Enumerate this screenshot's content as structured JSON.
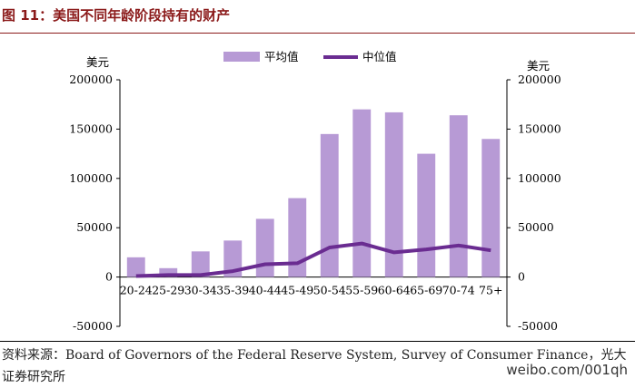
{
  "title": "图 11：美国不同年龄阶段持有的财产",
  "source": "资料来源：Board of Governors of the Federal Reserve System, Survey of Consumer Finance，光大证券研究所",
  "watermark": "weibo.com/001qh",
  "chart_data": {
    "type": "bar",
    "categories": [
      "20-24",
      "25-29",
      "30-34",
      "35-39",
      "40-44",
      "45-49",
      "50-54",
      "55-59",
      "60-64",
      "65-69",
      "70-74",
      "75+"
    ],
    "series": [
      {
        "name": "平均值",
        "kind": "bar",
        "axis": "left",
        "color": "#b79ad5",
        "values": [
          20000,
          9000,
          26000,
          37000,
          59000,
          80000,
          145000,
          170000,
          167000,
          125000,
          164000,
          140000
        ]
      },
      {
        "name": "中位值",
        "kind": "line",
        "axis": "right",
        "color": "#6a2c91",
        "values": [
          1000,
          2000,
          2000,
          6000,
          13000,
          14000,
          30000,
          34000,
          25000,
          28000,
          32000,
          27000
        ]
      }
    ],
    "ylim": [
      -50000,
      200000
    ],
    "y_ticks": [
      -50000,
      0,
      50000,
      100000,
      150000,
      200000
    ],
    "y_tick_labels": [
      "-50000",
      "0",
      "50000",
      "100000",
      "150000",
      "200000"
    ],
    "left_unit": "美元",
    "right_unit": "美元",
    "legend_position": "top-center",
    "grid": false
  }
}
